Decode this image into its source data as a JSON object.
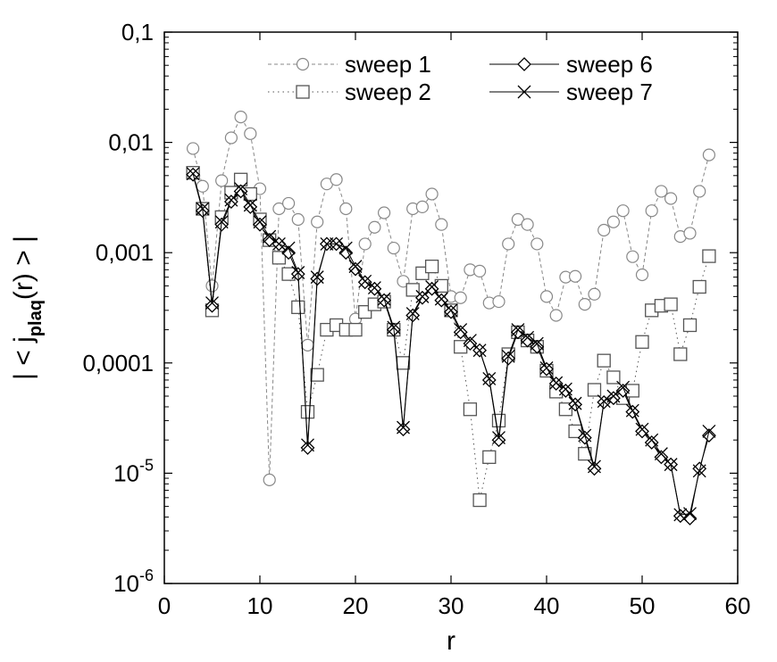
{
  "chart_data": {
    "type": "line",
    "title": "",
    "xlabel": "r",
    "ylabel_parts": {
      "pre": "| < j",
      "sub": "plaq",
      "post": "(r) > |"
    },
    "xlim": [
      0,
      60
    ],
    "ylim": [
      1e-06,
      0.1
    ],
    "yscale": "log",
    "grid": false,
    "legend_position": "top-center",
    "x_ticks": [
      0,
      10,
      20,
      30,
      40,
      50,
      60
    ],
    "x_tick_labels": [
      "0",
      "10",
      "20",
      "30",
      "40",
      "50",
      "60"
    ],
    "y_ticks": [
      {
        "value": 0.1,
        "label": "0,1",
        "base": "",
        "exp": ""
      },
      {
        "value": 0.01,
        "label": "0,01",
        "base": "",
        "exp": ""
      },
      {
        "value": 0.001,
        "label": "0,001",
        "base": "",
        "exp": ""
      },
      {
        "value": 0.0001,
        "label": "0,0001",
        "base": "",
        "exp": ""
      },
      {
        "value": 1e-05,
        "label": "",
        "base": "10",
        "exp": "-5"
      },
      {
        "value": 1e-06,
        "label": "",
        "base": "10",
        "exp": "-6"
      }
    ],
    "series": [
      {
        "name": "sweep 1",
        "marker": "circle",
        "line": "dash",
        "color": "#888888",
        "x": [
          3,
          4,
          5,
          6,
          7,
          8,
          9,
          10,
          11,
          12,
          13,
          14,
          15,
          16,
          17,
          18,
          19,
          20,
          21,
          22,
          23,
          24,
          25,
          26,
          27,
          28,
          29,
          30,
          31,
          32,
          33,
          34,
          35,
          36,
          37,
          38,
          39,
          40,
          41,
          42,
          43,
          44,
          45,
          46,
          47,
          48,
          49,
          50,
          51,
          52,
          53,
          54,
          55,
          56,
          57
        ],
        "y": [
          0.0088,
          0.004,
          0.0005,
          0.0045,
          0.011,
          0.017,
          0.012,
          0.0038,
          8.7e-06,
          0.0025,
          0.0028,
          0.002,
          0.000145,
          0.0019,
          0.0042,
          0.0046,
          0.0025,
          0.00025,
          0.0012,
          0.0017,
          0.0023,
          0.0011,
          0.00055,
          0.0025,
          0.0026,
          0.0034,
          0.0018,
          0.0004,
          0.00039,
          0.0007,
          0.00068,
          0.00035,
          0.00036,
          0.0012,
          0.002,
          0.0018,
          0.0012,
          0.0004,
          0.00027,
          0.0006,
          0.00061,
          0.00034,
          0.00042,
          0.0016,
          0.0019,
          0.0024,
          0.00092,
          0.00063,
          0.0024,
          0.0036,
          0.0031,
          0.0014,
          0.0015,
          0.0036,
          0.0077
        ]
      },
      {
        "name": "sweep 2",
        "marker": "square",
        "line": "dot",
        "color": "#555555",
        "x": [
          3,
          4,
          5,
          6,
          7,
          8,
          9,
          10,
          11,
          12,
          13,
          14,
          15,
          16,
          17,
          18,
          19,
          20,
          21,
          22,
          23,
          24,
          25,
          26,
          27,
          28,
          29,
          30,
          31,
          32,
          33,
          34,
          35,
          36,
          37,
          38,
          39,
          40,
          41,
          42,
          43,
          44,
          45,
          46,
          47,
          48,
          49,
          50,
          51,
          52,
          53,
          54,
          55,
          56,
          57
        ],
        "y": [
          0.0053,
          0.0025,
          0.0003,
          0.0021,
          0.0035,
          0.0046,
          0.0034,
          0.002,
          0.0013,
          0.0009,
          0.00064,
          0.00032,
          3.6e-05,
          7.8e-05,
          0.0002,
          0.00022,
          0.0002,
          0.0002,
          0.00029,
          0.00034,
          0.00036,
          0.0002,
          0.0001,
          0.00046,
          0.00065,
          0.00075,
          0.0005,
          0.0003,
          0.00014,
          3.8e-05,
          5.7e-06,
          1.4e-05,
          3e-05,
          0.00012,
          0.00019,
          0.00016,
          0.00014,
          8.5e-05,
          5.5e-05,
          3.8e-05,
          2.4e-05,
          1.5e-05,
          5.7e-05,
          0.000105,
          7.4e-05,
          4.8e-05,
          5.6e-05,
          0.000155,
          0.0003,
          0.00033,
          0.00034,
          0.00012,
          0.00022,
          0.00049,
          0.00093
        ]
      },
      {
        "name": "sweep 6",
        "marker": "diamond",
        "line": "solid",
        "color": "#000000",
        "x": [
          3,
          4,
          5,
          6,
          7,
          8,
          9,
          10,
          11,
          12,
          13,
          14,
          15,
          16,
          17,
          18,
          19,
          20,
          21,
          22,
          23,
          24,
          25,
          26,
          27,
          28,
          29,
          30,
          31,
          32,
          33,
          34,
          35,
          36,
          37,
          38,
          39,
          40,
          41,
          42,
          43,
          44,
          45,
          46,
          47,
          48,
          49,
          50,
          51,
          52,
          53,
          54,
          55,
          56,
          57
        ],
        "y": [
          0.0051,
          0.0024,
          0.00033,
          0.0018,
          0.0029,
          0.0036,
          0.0026,
          0.0018,
          0.0013,
          0.0012,
          0.001,
          0.00064,
          1.7e-05,
          0.00058,
          0.0012,
          0.0012,
          0.001,
          0.00071,
          0.00054,
          0.00047,
          0.00037,
          0.0002,
          2.5e-05,
          0.00027,
          0.00039,
          0.00047,
          0.00037,
          0.00029,
          0.00019,
          0.00015,
          0.00013,
          7e-05,
          2e-05,
          0.00011,
          0.00019,
          0.00016,
          0.00014,
          8.8e-05,
          6.5e-05,
          5.6e-05,
          4.2e-05,
          2.1e-05,
          1.1e-05,
          4.4e-05,
          4.8e-05,
          5.6e-05,
          3.6e-05,
          2.4e-05,
          1.9e-05,
          1.4e-05,
          1.2e-05,
          4.1e-06,
          3.9e-06,
          1.1e-05,
          2.2e-05
        ]
      },
      {
        "name": "sweep 7",
        "marker": "cross",
        "line": "solid",
        "color": "#000000",
        "x": [
          3,
          4,
          5,
          6,
          7,
          8,
          9,
          10,
          11,
          12,
          13,
          14,
          15,
          16,
          17,
          18,
          19,
          20,
          21,
          22,
          23,
          24,
          25,
          26,
          27,
          28,
          29,
          30,
          31,
          32,
          33,
          34,
          35,
          36,
          37,
          38,
          39,
          40,
          41,
          42,
          43,
          44,
          45,
          46,
          47,
          48,
          49,
          50,
          51,
          52,
          53,
          54,
          55,
          56,
          57
        ],
        "y": [
          0.0052,
          0.0025,
          0.00035,
          0.0019,
          0.003,
          0.0038,
          0.0027,
          0.0019,
          0.0014,
          0.0012,
          0.0011,
          0.00066,
          1.8e-05,
          0.0006,
          0.0012,
          0.0012,
          0.0011,
          0.00075,
          0.00055,
          0.00048,
          0.00038,
          0.00021,
          2.6e-05,
          0.00028,
          0.0004,
          0.00049,
          0.00038,
          0.0003,
          0.0002,
          0.00016,
          0.00013,
          7.2e-05,
          2.1e-05,
          0.000115,
          0.0002,
          0.00017,
          0.00015,
          9e-05,
          6.6e-05,
          5.8e-05,
          4.3e-05,
          2.2e-05,
          1.15e-05,
          4.5e-05,
          5e-05,
          6e-05,
          3.7e-05,
          2.5e-05,
          2e-05,
          1.5e-05,
          1.2e-05,
          4.2e-06,
          4.3e-06,
          1.05e-05,
          2.4e-05
        ]
      }
    ]
  }
}
